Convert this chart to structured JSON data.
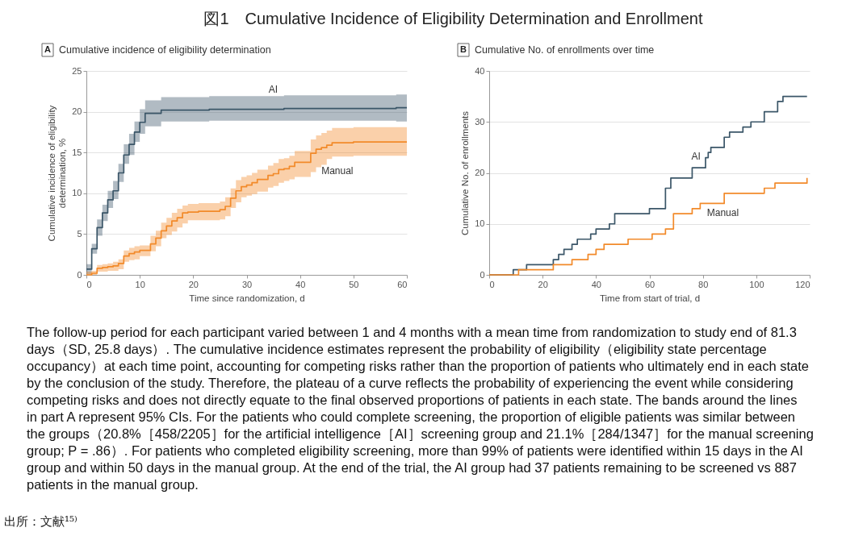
{
  "chart_data": [
    {
      "type": "other",
      "title": "図1　Cumulative Incidence of Eligibility Determination and Enrollment",
      "annotations": [
        "The follow-up period for each participant varied between 1 and 4 months with a mean time from randomization to study end of 81.3 days（SD, 25.8 days）. The cumulative incidence estimates represent the probability of eligibility（eligibility state percentage occupancy）at each time point, accounting for competing risks rather than the proportion of patients who ultimately end in each state by the conclusion of the study. Therefore, the plateau of a curve reflects the probability of experiencing the event while considering competing risks and does not directly equate to the final observed proportions of patients in each state. The bands around the lines in part A represent 95% CIs. For the patients who could complete screening, the proportion of eligible patients was similar between the groups（20.8%［458/2205］for the artificial intelligence［AI］screening group and 21.1%［284/1347］for the manual screening group; P = .86）. For patients who completed eligibility screening, more than 99% of patients were identified within 15 days in the AI group and within 50 days in the manual group. At the end of the trial, the AI group had 37 patients remaining to be screened vs 887 patients in the manual group.",
        "出所：文献¹⁵⁾"
      ]
    },
    {
      "type": "step",
      "title": "Cumulative incidence of eligibility determination",
      "annotations": [
        "A"
      ],
      "xlabel": "Time since randomization, d",
      "ylabel": "Cumulative incidence of eligibility determination, %",
      "xlim": [
        0,
        60
      ],
      "xticks": [
        0,
        10,
        20,
        30,
        40,
        50,
        60
      ],
      "ylim": [
        0,
        25
      ],
      "yticks": [
        0,
        5,
        10,
        15,
        20,
        25
      ],
      "grid": "y",
      "line_style": "solid",
      "series": [
        {
          "name": "AI",
          "color": "#3b5668",
          "x": [
            0,
            1,
            2,
            3,
            4,
            5,
            6,
            7,
            8,
            9,
            10,
            11,
            14,
            23,
            37,
            58,
            60
          ],
          "values": [
            0.7,
            3.2,
            5.8,
            7.6,
            9.2,
            10.3,
            12.5,
            14.7,
            16.0,
            17.5,
            18.7,
            19.8,
            20.2,
            20.3,
            20.4,
            20.5,
            20.5
          ],
          "lower": [
            0.1,
            2.6,
            4.8,
            6.6,
            8.2,
            9.3,
            11.4,
            13.6,
            14.7,
            16.3,
            17.3,
            18.2,
            18.8,
            18.9,
            18.9,
            18.8,
            18.8
          ],
          "upper": [
            1.3,
            3.8,
            6.8,
            8.6,
            10.3,
            11.5,
            13.6,
            16.0,
            17.3,
            18.8,
            20.3,
            21.4,
            21.8,
            21.9,
            22.0,
            22.1,
            22.1
          ]
        },
        {
          "name": "Manual",
          "color": "#f28a2a",
          "x": [
            0,
            1,
            2,
            3,
            4,
            5,
            6,
            7,
            8,
            9,
            10,
            12,
            13,
            14,
            15,
            16,
            17,
            18,
            19,
            21,
            25,
            26,
            27,
            28,
            29,
            30,
            31,
            32,
            34,
            35,
            36,
            37,
            38,
            39,
            42,
            43,
            44,
            45,
            46,
            50,
            60
          ],
          "values": [
            0,
            0.2,
            0.8,
            0.9,
            1.0,
            1.1,
            1.4,
            2.3,
            2.6,
            2.8,
            3.0,
            3.8,
            4.5,
            5.4,
            6.0,
            6.6,
            7.0,
            7.6,
            7.7,
            7.8,
            8.0,
            8.4,
            9.4,
            10.3,
            10.8,
            11.0,
            11.3,
            11.7,
            12.2,
            12.4,
            12.9,
            13.0,
            13.3,
            13.8,
            14.9,
            15.4,
            15.6,
            15.9,
            16.2,
            16.3,
            16.3
          ],
          "lower": [
            0,
            0,
            0.4,
            0.4,
            0.5,
            0.5,
            0.7,
            1.6,
            1.8,
            1.9,
            2.3,
            2.9,
            3.5,
            4.5,
            4.9,
            5.3,
            5.8,
            6.3,
            6.7,
            6.7,
            6.8,
            7.2,
            8.2,
            8.9,
            9.5,
            9.7,
            9.9,
            10.2,
            10.7,
            10.9,
            11.3,
            11.5,
            11.7,
            12.0,
            12.6,
            13.2,
            13.5,
            14.2,
            14.5,
            14.6,
            14.6
          ],
          "upper": [
            0.4,
            0.5,
            1.2,
            1.3,
            1.4,
            1.6,
            1.9,
            3.0,
            3.3,
            3.5,
            3.6,
            4.8,
            5.4,
            6.4,
            7.0,
            7.6,
            8.1,
            8.5,
            8.7,
            8.8,
            9.0,
            9.5,
            10.6,
            11.6,
            12.0,
            12.2,
            12.5,
            12.9,
            13.4,
            13.7,
            14.2,
            14.3,
            14.6,
            15.2,
            16.6,
            17.1,
            17.4,
            17.7,
            18.0,
            18.1,
            18.1
          ]
        }
      ]
    },
    {
      "type": "step",
      "title": "Cumulative No. of enrollments over time",
      "annotations": [
        "B"
      ],
      "xlabel": "Time from start of trial, d",
      "ylabel": "Cumulative No. of enrollments",
      "xlim": [
        0,
        120
      ],
      "xticks": [
        0,
        20,
        40,
        60,
        80,
        100,
        120
      ],
      "ylim": [
        0,
        40
      ],
      "yticks": [
        0,
        10,
        20,
        30,
        40
      ],
      "grid": "y",
      "line_style": "solid",
      "series": [
        {
          "name": "AI",
          "color": "#3b5668",
          "x": [
            0,
            9,
            14,
            24,
            26,
            28,
            31,
            33,
            38,
            40,
            45,
            47,
            60,
            66,
            68,
            76,
            81,
            82,
            83,
            88,
            90,
            95,
            98,
            103,
            108,
            110,
            119
          ],
          "values": [
            0,
            1,
            2,
            3,
            4,
            5,
            6,
            7,
            8,
            9,
            10,
            12,
            13,
            17,
            19,
            21,
            23,
            24,
            25,
            27,
            28,
            29,
            30,
            32,
            34,
            35,
            35
          ]
        },
        {
          "name": "Manual",
          "color": "#f28a2a",
          "x": [
            0,
            11,
            24,
            31,
            37,
            40,
            43,
            52,
            61,
            66,
            69,
            76,
            79,
            88,
            103,
            107,
            119
          ],
          "values": [
            0,
            1,
            2,
            3,
            4,
            5,
            6,
            7,
            8,
            9,
            12,
            13,
            14,
            16,
            17,
            18,
            19
          ]
        }
      ]
    }
  ]
}
